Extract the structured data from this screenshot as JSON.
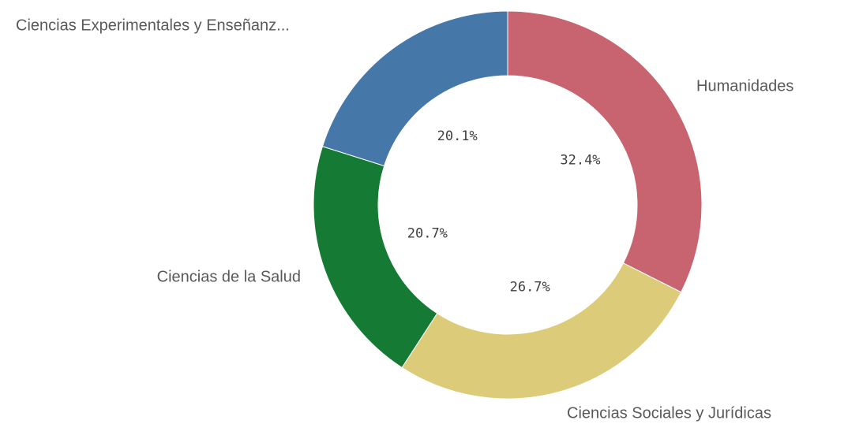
{
  "chart_data": {
    "type": "donut",
    "categories": [
      "Humanidades",
      "Ciencias Sociales y Jurídicas",
      "Ciencias de la Salud",
      "Ciencias Experimentales y Enseñanz..."
    ],
    "values": [
      32.4,
      26.7,
      20.7,
      20.1
    ],
    "value_labels": [
      "32.4%",
      "26.7%",
      "20.7%",
      "20.1%"
    ],
    "colors": [
      "#c8646f",
      "#dccb78",
      "#157a33",
      "#4577a8"
    ]
  }
}
